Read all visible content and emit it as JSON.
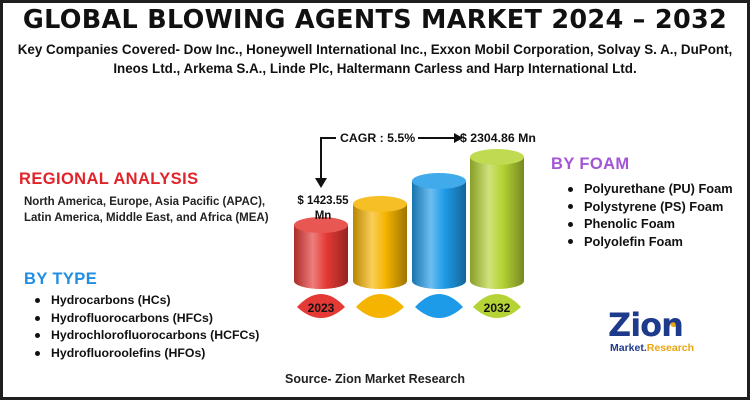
{
  "title": "GLOBAL BLOWING AGENTS MARKET 2024 – 2032",
  "companies": "Key Companies Covered- Dow Inc., Honeywell International Inc., Exxon Mobil Corporation, Solvay S. A., DuPont, Ineos Ltd., Arkema S.A., Linde Plc, Haltermann Carless and Harp International Ltd.",
  "regional": {
    "heading": "REGIONAL  ANALYSIS",
    "body": "North America, Europe, Asia Pacific (APAC), Latin America, Middle East, and Africa (MEA)"
  },
  "by_type": {
    "heading": "BY TYPE",
    "items": [
      "Hydrocarbons (HCs)",
      "Hydrofluorocarbons (HFCs)",
      "Hydrochlorofluorocarbons (HCFCs)",
      "Hydrofluoroolefins (HFOs)"
    ]
  },
  "by_foam": {
    "heading": "BY FOAM",
    "items": [
      "Polyurethane (PU) Foam",
      "Polystyrene (PS) Foam",
      "Phenolic Foam",
      "Polyolefin Foam"
    ]
  },
  "cagr_label": "CAGR : 5.5%",
  "value_start": "$ 1423.55 Mn",
  "value_end": "$ 2304.86 Mn",
  "source": "Source- Zion Market Research",
  "logo": {
    "word": "Zion",
    "sub_left": "Market.",
    "sub_right": "Research"
  },
  "chart_data": {
    "type": "bar",
    "categories": [
      "2023",
      "",
      "",
      "2032"
    ],
    "values": [
      1423.55,
      null,
      null,
      2304.86
    ],
    "colors": [
      "#e53935",
      "#f5b400",
      "#1e9be8",
      "#b5d334"
    ],
    "annotations": [
      "CAGR : 5.5%"
    ]
  },
  "colors": {
    "regional_heading": "#e0242a",
    "type_heading": "#1f8ee3",
    "foam_heading": "#a455d6"
  }
}
